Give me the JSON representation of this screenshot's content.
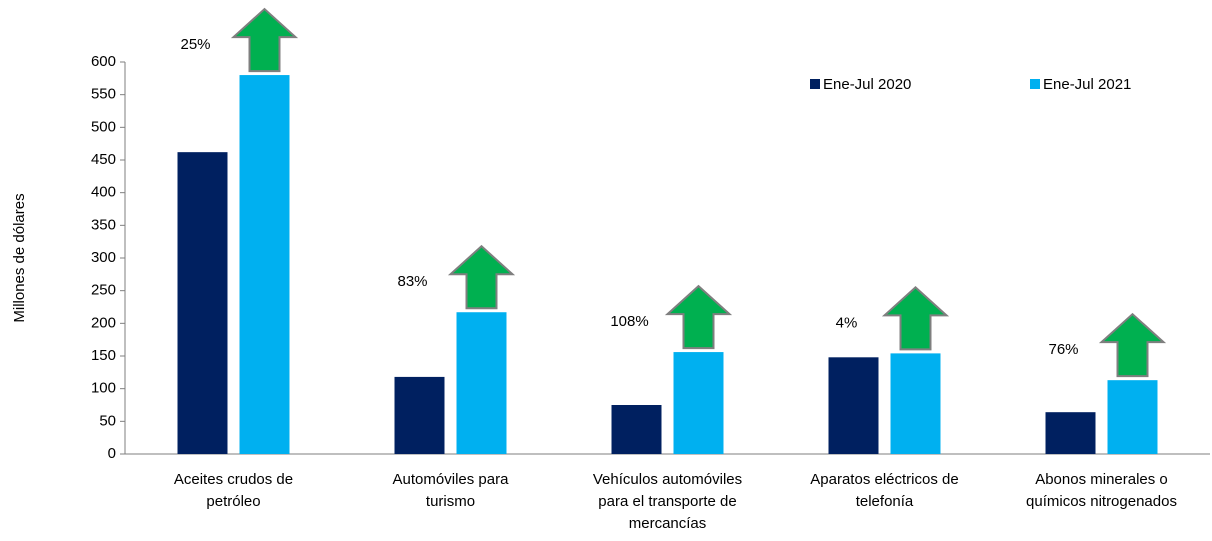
{
  "chart_data": {
    "type": "bar",
    "y_axis_label": "Millones de dólares",
    "categories": [
      "Aceites crudos de petróleo",
      "Automóviles para turismo",
      "Vehículos automóviles para el transporte de mercancías",
      "Aparatos eléctricos de telefonía",
      "Abonos minerales o químicos nitrogenados"
    ],
    "series": [
      {
        "name": "Ene-Jul 2020",
        "color": "#002060",
        "values": [
          462,
          118,
          75,
          148,
          64
        ]
      },
      {
        "name": "Ene-Jul  2021",
        "color": "#00b0f0",
        "values": [
          580,
          217,
          156,
          154,
          113
        ]
      }
    ],
    "annotations": [
      "25%",
      "83%",
      "108%",
      "4%",
      "76%"
    ],
    "ylim": [
      0,
      600
    ],
    "yticks": [
      0,
      50,
      100,
      150,
      200,
      250,
      300,
      350,
      400,
      450,
      500,
      550,
      600
    ],
    "legend": "top-right"
  }
}
